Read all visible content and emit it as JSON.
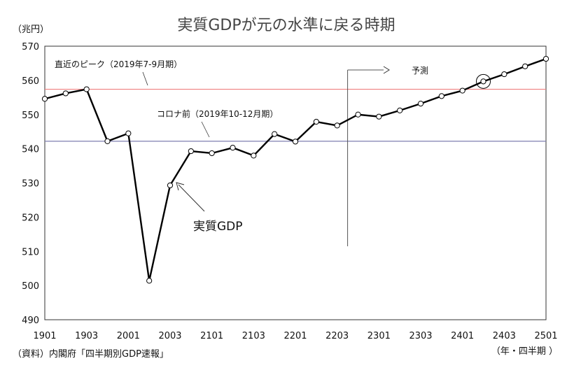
{
  "chart_data": {
    "type": "line",
    "title": "実質GDPが元の水準に戻る時期",
    "ylabel": "（兆円）",
    "xlabel": "（年・四半期 ）",
    "source": "（資料）内閣府「四半期別GDP速報」",
    "ylim": [
      490,
      570
    ],
    "yticks": [
      490,
      500,
      510,
      520,
      530,
      540,
      550,
      560,
      570
    ],
    "xtick_labels": [
      "1901",
      "1903",
      "2001",
      "2003",
      "2101",
      "2103",
      "2201",
      "2203",
      "2301",
      "2303",
      "2401",
      "2403",
      "2501"
    ],
    "x": [
      "1901",
      "1902",
      "1903",
      "1904",
      "2001",
      "2002",
      "2003",
      "2004",
      "2101",
      "2102",
      "2103",
      "2104",
      "2201",
      "2202",
      "2203",
      "2204",
      "2301",
      "2302",
      "2303",
      "2304",
      "2401",
      "2402",
      "2403",
      "2404",
      "2501"
    ],
    "series": [
      {
        "name": "実質GDP",
        "values": [
          554.6,
          556.2,
          557.4,
          542.2,
          544.5,
          501.4,
          529.3,
          539.3,
          538.7,
          540.3,
          538.0,
          544.3,
          542.1,
          547.9,
          546.8,
          550.0,
          549.4,
          551.2,
          553.2,
          555.4,
          557.0,
          559.7,
          561.8,
          564.1,
          566.3
        ]
      }
    ],
    "reference_lines": [
      {
        "label": "直近のピーク（2019年7-9月期）",
        "value": 557.4,
        "color": "#f08080"
      },
      {
        "label": "コロナ前（2019年10-12月期）",
        "value": 542.2,
        "color": "#7f7faf"
      }
    ],
    "annotations": {
      "forecast_label": "予測",
      "forecast_start": "2204",
      "series_label": "実質GDP",
      "highlight_point": "2402"
    },
    "grid": false
  }
}
